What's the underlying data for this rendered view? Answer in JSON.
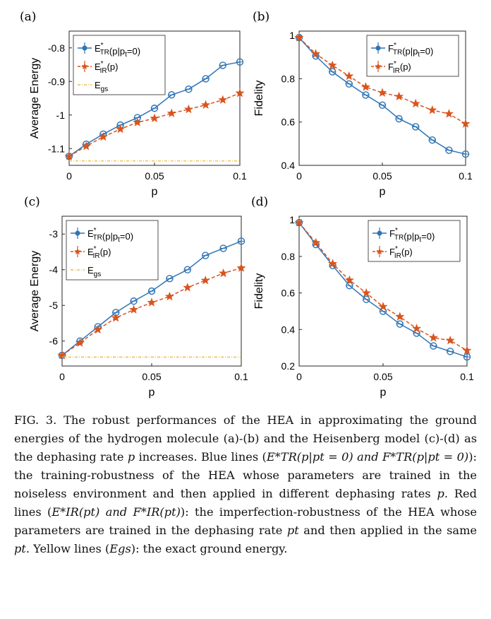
{
  "panels": [
    {
      "label": "(a)"
    },
    {
      "label": "(b)"
    },
    {
      "label": "(c)"
    },
    {
      "label": "(d)"
    }
  ],
  "chart_data": [
    {
      "type": "line",
      "panel": "(a)",
      "xlabel": "p",
      "ylabel": "Average Energy",
      "xlim": [
        0,
        0.1
      ],
      "ylim": [
        -1.15,
        -0.75
      ],
      "xticks": [
        "0",
        "0.05",
        "0.1"
      ],
      "yticks": [
        "-1.1",
        "-1",
        "-0.9",
        "-0.8"
      ],
      "grid": false,
      "legend": "top-left",
      "x": [
        0,
        0.01,
        0.02,
        0.03,
        0.04,
        0.05,
        0.06,
        0.07,
        0.08,
        0.09,
        0.1
      ],
      "series": [
        {
          "name": "E*TR(p|pt=0)",
          "color": "#2f74b5",
          "marker": "circle",
          "values": [
            -1.123,
            -1.087,
            -1.057,
            -1.03,
            -1.008,
            -0.98,
            -0.94,
            -0.923,
            -0.892,
            -0.852,
            -0.842
          ]
        },
        {
          "name": "E*IR(p)",
          "color": "#d9541e",
          "marker": "star",
          "values": [
            -1.123,
            -1.093,
            -1.065,
            -1.042,
            -1.022,
            -1.01,
            -0.995,
            -0.983,
            -0.97,
            -0.955,
            -0.935
          ]
        },
        {
          "name": "Egs",
          "color": "#edb120",
          "marker": "none",
          "values": [
            -1.137,
            -1.137,
            -1.137,
            -1.137,
            -1.137,
            -1.137,
            -1.137,
            -1.137,
            -1.137,
            -1.137,
            -1.137
          ]
        }
      ]
    },
    {
      "type": "line",
      "panel": "(b)",
      "xlabel": "p",
      "ylabel": "Fidelity",
      "xlim": [
        0,
        0.1
      ],
      "ylim": [
        0.4,
        1.02
      ],
      "xticks": [
        "0",
        "0.05",
        "0.1"
      ],
      "yticks": [
        "0.4",
        "0.6",
        "0.8",
        "1"
      ],
      "grid": false,
      "legend": "top-right",
      "x": [
        0,
        0.01,
        0.02,
        0.03,
        0.04,
        0.05,
        0.06,
        0.07,
        0.08,
        0.09,
        0.1
      ],
      "series": [
        {
          "name": "F*TR(p|pt=0)",
          "color": "#2f74b5",
          "marker": "circle",
          "values": [
            0.99,
            0.905,
            0.832,
            0.776,
            0.725,
            0.678,
            0.615,
            0.578,
            0.517,
            0.47,
            0.452
          ]
        },
        {
          "name": "F*IR(p)",
          "color": "#d9541e",
          "marker": "star",
          "values": [
            0.99,
            0.915,
            0.862,
            0.812,
            0.762,
            0.735,
            0.718,
            0.685,
            0.655,
            0.638,
            0.592
          ]
        }
      ]
    },
    {
      "type": "line",
      "panel": "(c)",
      "xlabel": "p",
      "ylabel": "Average Energy",
      "xlim": [
        0,
        0.1
      ],
      "ylim": [
        -6.7,
        -2.5
      ],
      "xticks": [
        "0",
        "0.05",
        "0.1"
      ],
      "yticks": [
        "-6",
        "-5",
        "-4",
        "-3"
      ],
      "grid": false,
      "legend": "top-left",
      "x": [
        0,
        0.01,
        0.02,
        0.03,
        0.04,
        0.05,
        0.06,
        0.07,
        0.08,
        0.09,
        0.1
      ],
      "series": [
        {
          "name": "E*TR(p|pt=0)",
          "color": "#2f74b5",
          "marker": "circle",
          "values": [
            -6.4,
            -6.0,
            -5.6,
            -5.2,
            -4.88,
            -4.6,
            -4.25,
            -4.0,
            -3.6,
            -3.4,
            -3.2
          ]
        },
        {
          "name": "E*IR(p)",
          "color": "#d9541e",
          "marker": "star",
          "values": [
            -6.4,
            -6.05,
            -5.68,
            -5.35,
            -5.12,
            -4.92,
            -4.75,
            -4.5,
            -4.3,
            -4.1,
            -3.95
          ]
        },
        {
          "name": "Egs",
          "color": "#edb120",
          "marker": "none",
          "values": [
            -6.45,
            -6.45,
            -6.45,
            -6.45,
            -6.45,
            -6.45,
            -6.45,
            -6.45,
            -6.45,
            -6.45,
            -6.45
          ]
        }
      ]
    },
    {
      "type": "line",
      "panel": "(d)",
      "xlabel": "p",
      "ylabel": "Fidelity",
      "xlim": [
        0,
        0.1
      ],
      "ylim": [
        0.2,
        1.02
      ],
      "xticks": [
        "0",
        "0.05",
        "0.1"
      ],
      "yticks": [
        "0.2",
        "0.4",
        "0.6",
        "0.8",
        "1"
      ],
      "grid": false,
      "legend": "top-right",
      "x": [
        0,
        0.01,
        0.02,
        0.03,
        0.04,
        0.05,
        0.06,
        0.07,
        0.08,
        0.09,
        0.1
      ],
      "series": [
        {
          "name": "F*TR(p|pt=0)",
          "color": "#2f74b5",
          "marker": "circle",
          "values": [
            0.985,
            0.865,
            0.75,
            0.64,
            0.565,
            0.5,
            0.43,
            0.38,
            0.31,
            0.28,
            0.25
          ]
        },
        {
          "name": "F*IR(p)",
          "color": "#d9541e",
          "marker": "star",
          "values": [
            0.985,
            0.875,
            0.76,
            0.67,
            0.6,
            0.525,
            0.47,
            0.405,
            0.355,
            0.34,
            0.285
          ]
        }
      ]
    }
  ],
  "caption": {
    "fig": "FIG. 3.",
    "t1": "The robust performances of the HEA in approximating the ground energies of the hydrogen molecule (a)-(b) and the Heisenberg model (c)-(d) as the dephasing rate",
    "t1_var": "p",
    "t2": "increases. Blue lines (",
    "blue_math": "E*TR(p|pt = 0) and F*TR(p|pt = 0)",
    "t3": "): the training-robustness of the HEA whose parameters are trained in the noiseless environment and then applied in different dephasing rates",
    "t3_var": "p",
    "t4": ". Red lines (",
    "red_math": "E*IR(pt) and F*IR(pt)",
    "t5": "): the imperfection-robustness of the HEA whose parameters are trained in the dephasing rate",
    "t5_var": "pt",
    "t6": "and then applied in the same",
    "t6_var": "pt",
    "t7": ". Yellow lines (",
    "yellow_math": "Egs",
    "t8": "): the exact ground energy."
  }
}
